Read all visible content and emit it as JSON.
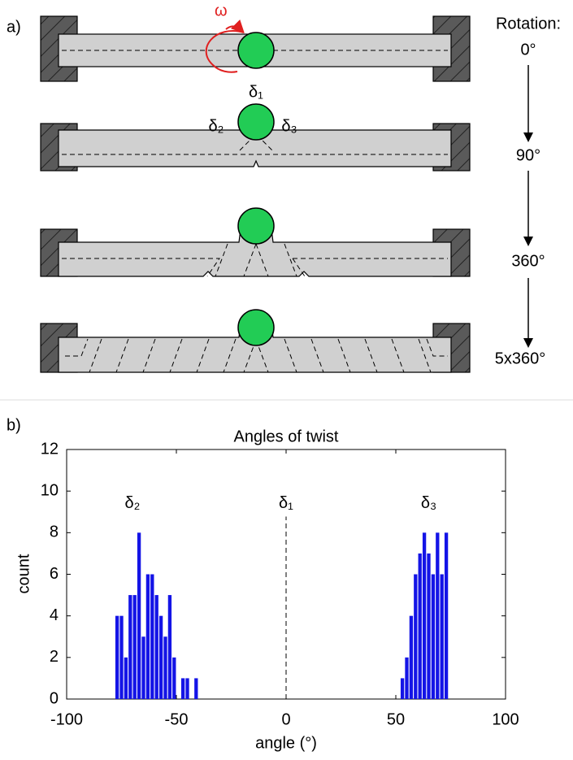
{
  "diagram": {
    "panel_label": "a)",
    "omega": "ω",
    "delta1": "δ₁",
    "delta2": "δ₂",
    "delta3": "δ₃",
    "rotation_title": "Rotation:",
    "rotations": [
      "0°",
      "90°",
      "360°",
      "5x360°"
    ]
  },
  "panel_label_b": "b)",
  "chart_data": {
    "type": "histogram",
    "title": "Angles of twist",
    "xlabel": "angle (°)",
    "ylabel": "count",
    "color": "#1414e6",
    "bins": [
      -80,
      -78,
      -76,
      -74,
      -72,
      -70,
      -68,
      -66,
      -64,
      -62,
      -60,
      -58,
      -56,
      -54,
      -52,
      -50,
      -48,
      -46,
      -44,
      -42,
      -40,
      -38,
      -36,
      -34,
      -32,
      -30,
      -28,
      -26,
      -24,
      -22,
      -20,
      -18,
      -16,
      -14,
      -12,
      -10,
      -8,
      -6,
      -4,
      -2,
      0,
      2,
      4,
      6,
      8,
      10,
      12,
      14,
      16,
      18,
      20,
      22,
      24,
      26,
      28,
      30,
      32,
      34,
      36,
      38,
      40,
      42,
      44,
      46,
      48,
      50,
      52,
      54,
      56,
      58,
      60,
      62,
      64,
      66,
      68,
      70,
      72,
      74,
      76
    ],
    "counts": [
      0,
      4,
      4,
      2,
      5,
      5,
      8,
      3,
      6,
      6,
      5,
      4,
      3,
      5,
      2,
      0,
      1,
      1,
      0,
      1,
      0,
      0,
      0,
      0,
      0,
      0,
      0,
      0,
      0,
      0,
      0,
      0,
      0,
      0,
      0,
      0,
      0,
      0,
      0,
      0,
      0,
      0,
      0,
      0,
      0,
      0,
      0,
      0,
      0,
      0,
      0,
      0,
      0,
      0,
      0,
      0,
      0,
      0,
      0,
      0,
      0,
      0,
      0,
      0,
      0,
      0,
      1,
      2,
      4,
      6,
      7,
      8,
      7,
      6,
      8,
      6,
      8,
      0
    ],
    "xlim": [
      -100,
      100
    ],
    "ylim": [
      0,
      12
    ],
    "xticks": [
      -100,
      -50,
      0,
      50,
      100
    ],
    "yticks": [
      0,
      2,
      4,
      6,
      8,
      10,
      12
    ],
    "annotations": [
      {
        "text": "δ₂",
        "x": -70,
        "y": 9.4
      },
      {
        "text": "δ₁",
        "x": 0,
        "y": 9.4
      },
      {
        "text": "δ₃",
        "x": 65,
        "y": 9.4
      }
    ],
    "reference_line": {
      "x": 0
    }
  }
}
